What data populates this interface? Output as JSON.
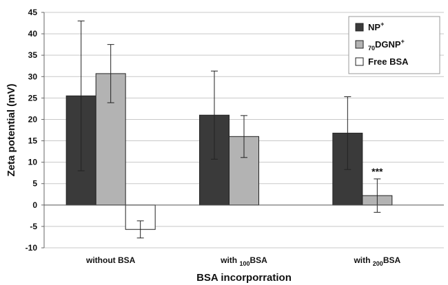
{
  "chart_data": {
    "type": "bar",
    "categories": [
      "without BSA",
      "with 100BSA",
      "with 200BSA"
    ],
    "category_labels": [
      {
        "text": "without BSA",
        "sub": "",
        "after": ""
      },
      {
        "text": "with ",
        "sub": "100",
        "after": "BSA"
      },
      {
        "text": "with ",
        "sub": "200",
        "after": "BSA"
      }
    ],
    "series": [
      {
        "name": "NP+",
        "label_parts": {
          "pre": "",
          "main": "NP",
          "sup": "+"
        },
        "color": "#3a3a3a",
        "values": [
          25.5,
          21.0,
          16.8
        ],
        "error": [
          17.5,
          10.3,
          8.5
        ]
      },
      {
        "name": "70DGNP+",
        "label_parts": {
          "pre": "70",
          "main": "DGNP",
          "sup": "+"
        },
        "color": "#b3b3b3",
        "values": [
          30.7,
          16.0,
          2.2
        ],
        "error": [
          6.8,
          4.9,
          3.9
        ]
      },
      {
        "name": "Free BSA",
        "label_parts": {
          "pre": "",
          "main": "Free BSA",
          "sup": ""
        },
        "color": "#ffffff",
        "values": [
          -5.7,
          null,
          null
        ],
        "error": [
          2.0,
          null,
          null
        ]
      }
    ],
    "ylabel": "Zeta potential (mV)",
    "xlabel": "BSA incorporration",
    "ylim": [
      -10,
      45
    ],
    "yticks": [
      -10,
      -5,
      0,
      5,
      10,
      15,
      20,
      25,
      30,
      35,
      40,
      45
    ],
    "grid": true,
    "legend_position": "top-right",
    "annotations": [
      {
        "text": "***",
        "category_index": 2,
        "series_index": 1
      }
    ]
  }
}
